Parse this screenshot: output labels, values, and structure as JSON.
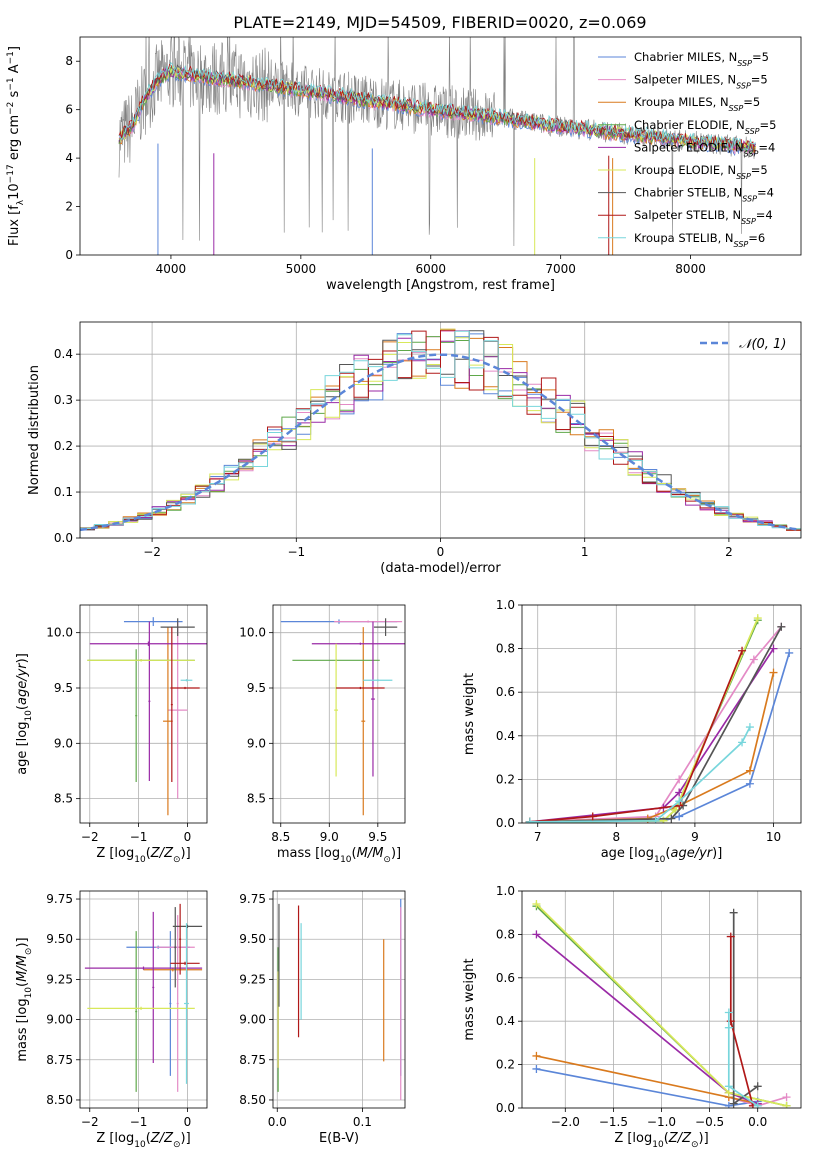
{
  "title": "PLATE=2149, MJD=54509, FIBERID=0020, z=0.069",
  "models": [
    {
      "name": "Chabrier MILES",
      "nssp": "5",
      "color": "#5b86d8"
    },
    {
      "name": "Salpeter MILES",
      "nssp": "5",
      "color": "#e48bc6"
    },
    {
      "name": "Kroupa MILES",
      "nssp": "5",
      "color": "#d97a1e"
    },
    {
      "name": "Chabrier ELODIE",
      "nssp": "5",
      "color": "#5fa84a"
    },
    {
      "name": "Salpeter ELODIE",
      "nssp": "4",
      "color": "#9a2aa6"
    },
    {
      "name": "Kroupa ELODIE",
      "nssp": "5",
      "color": "#d8e85a"
    },
    {
      "name": "Chabrier STELIB",
      "nssp": "4",
      "color": "#555555"
    },
    {
      "name": "Salpeter STELIB",
      "nssp": "4",
      "color": "#b01818"
    },
    {
      "name": "Kroupa STELIB",
      "nssp": "6",
      "color": "#78d6dc"
    }
  ],
  "chart_data": [
    {
      "id": "spectrum",
      "type": "line",
      "xlabel": "wavelength [Angstrom, rest frame]",
      "ylabel": "Flux [f_λ10^-17 erg cm^-2 s^-1 A^-1]",
      "xlim": [
        3300,
        8850
      ],
      "ylim": [
        0,
        9
      ],
      "xticks": [
        4000,
        5000,
        6000,
        7000,
        8000
      ],
      "yticks": [
        0,
        2,
        4,
        6,
        8
      ],
      "data_color": "#808080",
      "continuum": {
        "x": [
          3600,
          3700,
          3800,
          3900,
          4000,
          4200,
          4500,
          5000,
          5500,
          6000,
          6500,
          7000,
          7500,
          8000,
          8500
        ],
        "y": [
          4.8,
          5.3,
          6.5,
          7.2,
          7.6,
          7.4,
          7.2,
          6.8,
          6.4,
          6.0,
          5.7,
          5.3,
          5.0,
          4.7,
          4.4
        ]
      },
      "legend_position": "upper right"
    },
    {
      "id": "residual_hist",
      "type": "step",
      "xlabel": "(data-model)/error",
      "ylabel": "Normed distribution",
      "xlim": [
        -2.5,
        2.5
      ],
      "ylim": [
        0,
        0.47
      ],
      "xticks": [
        -2,
        -1,
        0,
        1,
        2
      ],
      "yticks": [
        0.0,
        0.1,
        0.2,
        0.3,
        0.4
      ],
      "grid": true,
      "reference_label": "𝒩(0, 1)",
      "reference_color": "#5b86d8",
      "legend_position": "upper right"
    },
    {
      "id": "age_vs_Z",
      "type": "errorbar",
      "xlabel": "Z [log10(Z/Z⊙)]",
      "ylabel": "age [log10(age/yr)]",
      "xlim": [
        -2.2,
        0.4
      ],
      "ylim": [
        8.28,
        10.25
      ],
      "xticks": [
        -2,
        -1,
        0
      ],
      "yticks": [
        8.5,
        9.0,
        9.5,
        10.0
      ],
      "grid": true,
      "points": [
        {
          "model": 0,
          "x": -0.7,
          "xerr": 0.6,
          "y": 10.1,
          "yerr": 0.04
        },
        {
          "model": 1,
          "x": -0.2,
          "xerr": 0.2,
          "y": 9.3,
          "yerr": 0.8
        },
        {
          "model": 2,
          "x": -0.4,
          "xerr": 0.1,
          "y": 9.2,
          "yerr": 0.85
        },
        {
          "model": 3,
          "x": -0.95,
          "xerr": 1.1,
          "y": 9.75,
          "yerr": 0.01
        },
        {
          "model": 3,
          "x": -1.05,
          "xerr": 0.02,
          "y": 9.25,
          "yerr": 0.6
        },
        {
          "model": 4,
          "x": -0.8,
          "xerr": 1.2,
          "y": 9.9,
          "yerr": 0.02
        },
        {
          "model": 4,
          "x": -0.78,
          "xerr": 0.02,
          "y": 9.38,
          "yerr": 0.72
        },
        {
          "model": 5,
          "x": -0.95,
          "xerr": 1.1,
          "y": 9.75,
          "yerr": 0.01
        },
        {
          "model": 6,
          "x": -0.2,
          "xerr": 0.35,
          "y": 10.05,
          "yerr": 0.08
        },
        {
          "model": 7,
          "x": -0.05,
          "xerr": 0.3,
          "y": 9.5,
          "yerr": 0.01
        },
        {
          "model": 7,
          "x": -0.32,
          "xerr": 0.02,
          "y": 9.35,
          "yerr": 0.7
        },
        {
          "model": 8,
          "x": -0.02,
          "xerr": 0.12,
          "y": 9.57,
          "yerr": 0.01
        }
      ]
    },
    {
      "id": "age_vs_mass",
      "type": "errorbar",
      "xlabel": "mass [log10(M/M⊙)]",
      "ylabel": "",
      "xlim": [
        8.42,
        9.78
      ],
      "ylim": [
        8.28,
        10.25
      ],
      "xticks": [
        8.5,
        9.0,
        9.5
      ],
      "yticks": [
        8.5,
        9.0,
        9.5,
        10.0
      ],
      "grid": true,
      "points": [
        {
          "model": 0,
          "x": 9.1,
          "xerr": 0.6,
          "y": 10.1,
          "yerr": 0.02
        },
        {
          "model": 1,
          "x": 9.4,
          "xerr": 0.35,
          "y": 10.1,
          "yerr": 0.01
        },
        {
          "model": 2,
          "x": 9.35,
          "xerr": 0.02,
          "y": 9.2,
          "yerr": 0.85
        },
        {
          "model": 3,
          "x": 9.07,
          "xerr": 0.45,
          "y": 9.75,
          "yerr": 0.01
        },
        {
          "model": 4,
          "x": 9.32,
          "xerr": 0.5,
          "y": 9.9,
          "yerr": 0.01
        },
        {
          "model": 4,
          "x": 9.45,
          "xerr": 0.02,
          "y": 9.4,
          "yerr": 0.7
        },
        {
          "model": 5,
          "x": 9.07,
          "xerr": 0.02,
          "y": 9.3,
          "yerr": 0.6
        },
        {
          "model": 6,
          "x": 9.58,
          "xerr": 0.12,
          "y": 10.05,
          "yerr": 0.08
        },
        {
          "model": 7,
          "x": 9.32,
          "xerr": 0.25,
          "y": 9.5,
          "yerr": 0.01
        },
        {
          "model": 8,
          "x": 9.5,
          "xerr": 0.15,
          "y": 9.57,
          "yerr": 0.01
        }
      ]
    },
    {
      "id": "weight_vs_age",
      "type": "line",
      "xlabel": "age [log10(age/yr)]",
      "ylabel": "mass weight",
      "xlim": [
        6.8,
        10.35
      ],
      "ylim": [
        0,
        1.0
      ],
      "xticks": [
        7,
        8,
        9,
        10
      ],
      "yticks": [
        0.0,
        0.2,
        0.4,
        0.6,
        0.8,
        1.0
      ],
      "grid": true,
      "series": [
        {
          "model": 0,
          "x": [
            6.9,
            8.6,
            8.8,
            9.7,
            10.2
          ],
          "y": [
            0.005,
            0.01,
            0.03,
            0.18,
            0.78
          ]
        },
        {
          "model": 1,
          "x": [
            6.9,
            8.5,
            8.8,
            9.75,
            10.1
          ],
          "y": [
            0.005,
            0.03,
            0.2,
            0.75,
            0.9
          ]
        },
        {
          "model": 2,
          "x": [
            6.9,
            8.4,
            8.8,
            9.7,
            10.0
          ],
          "y": [
            0.005,
            0.02,
            0.08,
            0.24,
            0.69
          ]
        },
        {
          "model": 3,
          "x": [
            6.9,
            8.6,
            8.75,
            9.8
          ],
          "y": [
            0.005,
            0.01,
            0.06,
            0.93
          ]
        },
        {
          "model": 4,
          "x": [
            6.9,
            8.6,
            8.8,
            10.0
          ],
          "y": [
            0.005,
            0.07,
            0.14,
            0.8
          ]
        },
        {
          "model": 5,
          "x": [
            6.9,
            8.6,
            8.75,
            9.8
          ],
          "y": [
            0.005,
            0.01,
            0.06,
            0.94
          ]
        },
        {
          "model": 6,
          "x": [
            6.9,
            8.7,
            8.85,
            10.1
          ],
          "y": [
            0.005,
            0.02,
            0.08,
            0.9
          ]
        },
        {
          "model": 7,
          "x": [
            6.9,
            7.7,
            8.8,
            9.6
          ],
          "y": [
            0.005,
            0.03,
            0.08,
            0.79
          ]
        },
        {
          "model": 8,
          "x": [
            6.9,
            8.5,
            8.8,
            9.6,
            9.7
          ],
          "y": [
            0.005,
            0.01,
            0.1,
            0.37,
            0.44
          ]
        }
      ]
    },
    {
      "id": "mass_vs_Z",
      "type": "errorbar",
      "xlabel": "Z [log10(Z/Z⊙)]",
      "ylabel": "mass [log10(M/M⊙)]",
      "xlim": [
        -2.2,
        0.4
      ],
      "ylim": [
        8.45,
        9.8
      ],
      "xticks": [
        -2,
        -1,
        0
      ],
      "yticks": [
        8.5,
        8.75,
        9.0,
        9.25,
        9.5,
        9.75
      ],
      "grid": true,
      "points": [
        {
          "model": 0,
          "x": -0.6,
          "xerr": 0.65,
          "y": 9.45,
          "yerr": 0.01
        },
        {
          "model": 0,
          "x": -0.35,
          "xerr": 0.02,
          "y": 9.1,
          "yerr": 0.45
        },
        {
          "model": 1,
          "x": -0.25,
          "xerr": 0.4,
          "y": 9.45,
          "yerr": 0.01
        },
        {
          "model": 1,
          "x": -0.2,
          "xerr": 0.02,
          "y": 9.1,
          "yerr": 0.55
        },
        {
          "model": 2,
          "x": -0.3,
          "xerr": 0.6,
          "y": 9.31,
          "yerr": 0.01
        },
        {
          "model": 3,
          "x": -1.05,
          "xerr": 0.02,
          "y": 9.05,
          "yerr": 0.5
        },
        {
          "model": 4,
          "x": -0.9,
          "xerr": 1.2,
          "y": 9.32,
          "yerr": 0.01
        },
        {
          "model": 4,
          "x": -0.7,
          "xerr": 0.02,
          "y": 9.2,
          "yerr": 0.47
        },
        {
          "model": 5,
          "x": -0.95,
          "xerr": 1.1,
          "y": 9.07,
          "yerr": 0.01
        },
        {
          "model": 6,
          "x": 0.0,
          "xerr": 0.3,
          "y": 9.58,
          "yerr": 0.01
        },
        {
          "model": 6,
          "x": -0.25,
          "xerr": 0.02,
          "y": 9.45,
          "yerr": 0.25
        },
        {
          "model": 7,
          "x": -0.05,
          "xerr": 0.3,
          "y": 9.35,
          "yerr": 0.01
        },
        {
          "model": 7,
          "x": -0.15,
          "xerr": 0.02,
          "y": 9.5,
          "yerr": 0.22
        },
        {
          "model": 8,
          "x": -0.02,
          "xerr": 0.05,
          "y": 9.1,
          "yerr": 0.5
        }
      ]
    },
    {
      "id": "mass_vs_ebv",
      "type": "errorbar",
      "xlabel": "E(B-V)",
      "ylabel": "",
      "xlim": [
        -0.005,
        0.15
      ],
      "ylim": [
        8.45,
        9.8
      ],
      "xticks": [
        0.0,
        0.1
      ],
      "yticks": [
        8.5,
        8.75,
        9.0,
        9.25,
        9.5,
        9.75
      ],
      "grid": true,
      "points": [
        {
          "model": 0,
          "x": 0.145,
          "xerr": 0.0,
          "y": 9.2,
          "yerr": 0.55
        },
        {
          "model": 1,
          "x": 0.145,
          "xerr": 0.0,
          "y": 9.1,
          "yerr": 0.6
        },
        {
          "model": 2,
          "x": 0.125,
          "xerr": 0.0,
          "y": 9.12,
          "yerr": 0.38
        },
        {
          "model": 3,
          "x": 0.001,
          "xerr": 0.0,
          "y": 9.0,
          "yerr": 0.45
        },
        {
          "model": 4,
          "x": 0.001,
          "xerr": 0.0,
          "y": 9.0,
          "yerr": 0.3
        },
        {
          "model": 5,
          "x": 0.001,
          "xerr": 0.0,
          "y": 9.0,
          "yerr": 0.3
        },
        {
          "model": 6,
          "x": 0.002,
          "xerr": 0.0,
          "y": 9.4,
          "yerr": 0.32
        },
        {
          "model": 7,
          "x": 0.025,
          "xerr": 0.0,
          "y": 9.3,
          "yerr": 0.41
        },
        {
          "model": 8,
          "x": 0.028,
          "xerr": 0.0,
          "y": 9.3,
          "yerr": 0.3
        }
      ]
    },
    {
      "id": "weight_vs_Z",
      "type": "line",
      "xlabel": "Z [log10(Z/Z⊙)]",
      "ylabel": "mass weight",
      "xlim": [
        -2.45,
        0.45
      ],
      "ylim": [
        0,
        1.0
      ],
      "xticks": [
        -2.0,
        -1.5,
        -1.0,
        -0.5,
        0.0
      ],
      "yticks": [
        0.0,
        0.2,
        0.4,
        0.6,
        0.8,
        1.0
      ],
      "grid": true,
      "series": [
        {
          "model": 0,
          "x": [
            -2.3,
            -0.3,
            0.0
          ],
          "y": [
            0.18,
            0.01,
            0.03
          ]
        },
        {
          "model": 1,
          "x": [
            -0.3,
            0.0,
            0.3
          ],
          "y": [
            0.05,
            0.01,
            0.05
          ]
        },
        {
          "model": 2,
          "x": [
            -2.3,
            -0.3,
            0.0
          ],
          "y": [
            0.24,
            0.05,
            0.02
          ]
        },
        {
          "model": 3,
          "x": [
            -2.3,
            -0.3,
            0.3
          ],
          "y": [
            0.93,
            0.07,
            0.01
          ]
        },
        {
          "model": 4,
          "x": [
            -2.3,
            -0.3,
            0.0
          ],
          "y": [
            0.8,
            0.07,
            0.02
          ]
        },
        {
          "model": 5,
          "x": [
            -2.3,
            -0.3,
            0.3
          ],
          "y": [
            0.94,
            0.07,
            0.01
          ]
        },
        {
          "model": 6,
          "x": [
            -0.25,
            -0.25,
            0.0
          ],
          "y": [
            0.9,
            0.02,
            0.1
          ]
        },
        {
          "model": 7,
          "x": [
            -0.28,
            -0.28,
            -0.05
          ],
          "y": [
            0.79,
            0.4,
            0.01
          ]
        },
        {
          "model": 8,
          "x": [
            -0.3,
            -0.3,
            -0.3,
            0.0
          ],
          "y": [
            0.44,
            0.37,
            0.1,
            0.01
          ]
        }
      ]
    }
  ]
}
